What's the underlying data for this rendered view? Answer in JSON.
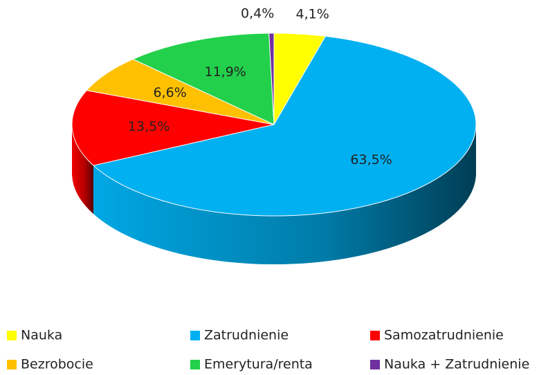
{
  "chart_data": {
    "type": "pie",
    "style": "3d",
    "categories": [
      "Nauka",
      "Zatrudnienie",
      "Samozatrudnienie",
      "Bezrobocie",
      "Emerytura/renta",
      "Nauka + Zatrudnienie"
    ],
    "values": [
      4.1,
      63.5,
      13.5,
      6.6,
      11.9,
      0.4
    ],
    "value_labels": [
      "4,1%",
      "63,5%",
      "13,5%",
      "6,6%",
      "11,9%",
      "0,4%"
    ],
    "colors": [
      "#ffff00",
      "#00b0f0",
      "#ff0000",
      "#ffc000",
      "#22d04b",
      "#7030a0"
    ],
    "legend": "bottom"
  }
}
